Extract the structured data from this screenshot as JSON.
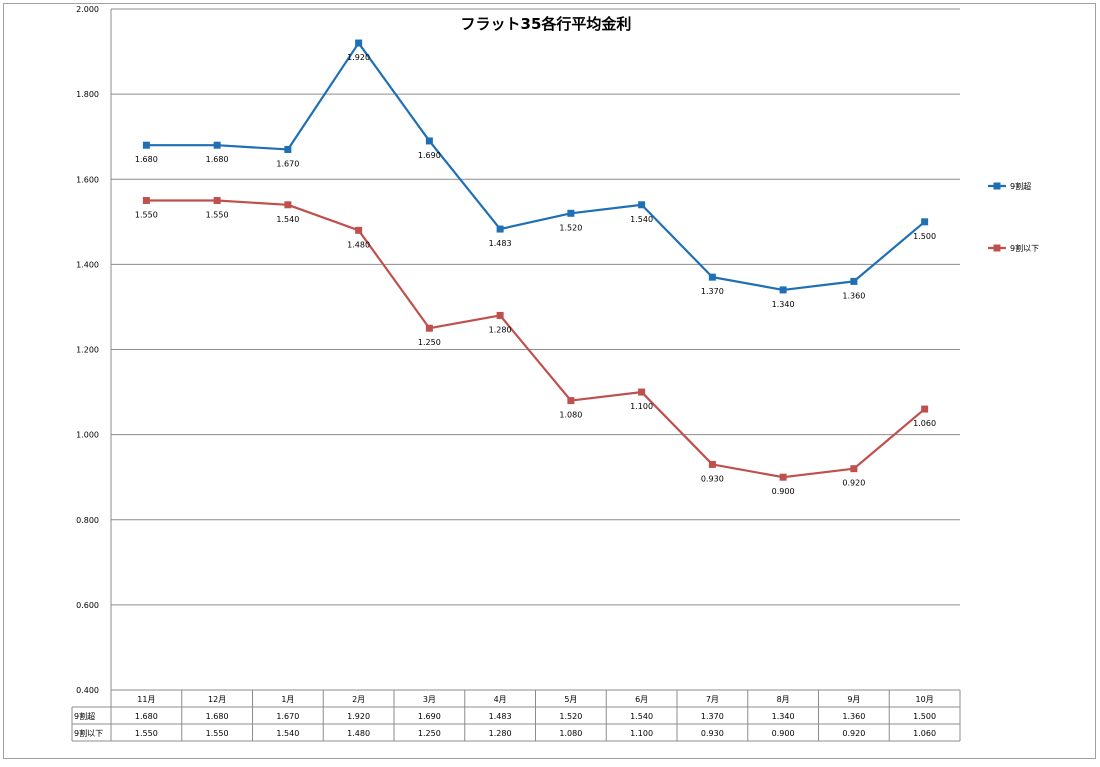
{
  "chart_data": {
    "type": "line",
    "title": "フラット35各行平均金利",
    "categories": [
      "11月",
      "12月",
      "1月",
      "2月",
      "3月",
      "4月",
      "5月",
      "6月",
      "7月",
      "8月",
      "9月",
      "10月"
    ],
    "series": [
      {
        "name": "9割超",
        "color": "#1f6fb5",
        "values": [
          1.68,
          1.68,
          1.67,
          1.92,
          1.69,
          1.483,
          1.52,
          1.54,
          1.37,
          1.34,
          1.36,
          1.5
        ],
        "labels": [
          "1.680",
          "1.680",
          "1.670",
          "1.920",
          "1.690",
          "1.483",
          "1.520",
          "1.540",
          "1.370",
          "1.340",
          "1.360",
          "1.500"
        ]
      },
      {
        "name": "9割以下",
        "color": "#c0504d",
        "values": [
          1.55,
          1.55,
          1.54,
          1.48,
          1.25,
          1.28,
          1.08,
          1.1,
          0.93,
          0.9,
          0.92,
          1.06
        ],
        "labels": [
          "1.550",
          "1.550",
          "1.540",
          "1.480",
          "1.250",
          "1.280",
          "1.080",
          "1.100",
          "0.930",
          "0.900",
          "0.920",
          "1.060"
        ]
      }
    ],
    "ylim": [
      0.4,
      2.0
    ],
    "yticks": [
      {
        "value": 0.4,
        "label": "0.400"
      },
      {
        "value": 0.6,
        "label": "0.600"
      },
      {
        "value": 0.8,
        "label": "0.800"
      },
      {
        "value": 1.0,
        "label": "1.000"
      },
      {
        "value": 1.2,
        "label": "1.200"
      },
      {
        "value": 1.4,
        "label": "1.400"
      },
      {
        "value": 1.6,
        "label": "1.600"
      },
      {
        "value": 1.8,
        "label": "1.800"
      },
      {
        "value": 2.0,
        "label": "2.000"
      }
    ],
    "grid": true,
    "legend": "right",
    "data_table": true
  }
}
